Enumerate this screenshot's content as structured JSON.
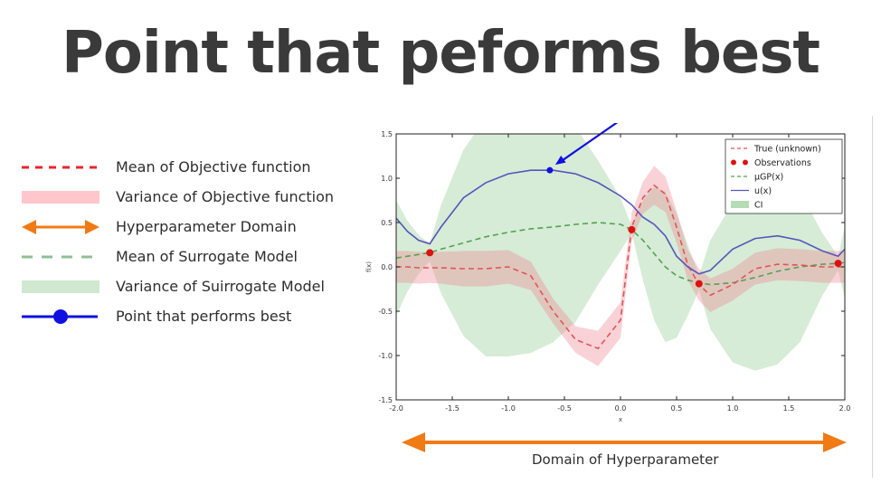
{
  "title": "Point that peforms best",
  "legend_key": [
    {
      "label": "Mean of Objective function",
      "icon": "red-dashed-line-icon",
      "color": "#e8262c"
    },
    {
      "label": "Variance of Objective function",
      "icon": "pink-band-icon",
      "color": "#ffc7cc"
    },
    {
      "label": "Hyperparameter Domain",
      "icon": "orange-double-arrow-icon",
      "color": "#f07a14"
    },
    {
      "label": "Mean of Surrogate Model",
      "icon": "green-dashed-line-icon",
      "color": "#8fbf96"
    },
    {
      "label": "Variance of Suirrogate Model",
      "icon": "green-band-icon",
      "color": "#cfe8cf"
    },
    {
      "label": "Point that performs best",
      "icon": "blue-dot-line-icon",
      "color": "#1010e0"
    }
  ],
  "domain_label": "Domain of Hyperparameter",
  "chart_data": {
    "type": "line",
    "xlim": [
      -2.0,
      2.0
    ],
    "ylim": [
      -1.5,
      1.5
    ],
    "xlabel": "x",
    "ylabel": "f(x)",
    "x_ticks": [
      "-2.0",
      "-1.5",
      "-1.0",
      "-0.5",
      "0.0",
      "0.5",
      "1.0",
      "1.5",
      "2.0"
    ],
    "y_ticks": [
      "1.5",
      "1.0",
      "0.5",
      "0.0",
      "-0.5",
      "-1.0",
      "-1.5"
    ],
    "grid": false,
    "legend_position": "top-right",
    "legend": [
      {
        "label": "True (unknown)",
        "icon": "dashed-line",
        "color": "#e05555"
      },
      {
        "label": "Observations",
        "icon": "red-dots",
        "color": "#dd1111"
      },
      {
        "label": "μGP(x)",
        "icon": "dashed-line",
        "color": "#55a055"
      },
      {
        "label": "u(x)",
        "icon": "solid-line",
        "color": "#5555bb"
      },
      {
        "label": "CI",
        "icon": "patch",
        "color": "#b5dcb5"
      }
    ],
    "x": [
      -2.0,
      -1.9,
      -1.8,
      -1.7,
      -1.6,
      -1.4,
      -1.2,
      -1.0,
      -0.8,
      -0.6,
      -0.4,
      -0.2,
      0.0,
      0.1,
      0.2,
      0.3,
      0.4,
      0.5,
      0.6,
      0.7,
      0.8,
      1.0,
      1.2,
      1.4,
      1.6,
      1.8,
      1.94,
      2.0
    ],
    "series": [
      {
        "name": "True (unknown)",
        "color": "#e05555",
        "values": [
          0.0,
          0.0,
          -0.01,
          -0.01,
          -0.01,
          -0.02,
          -0.02,
          0.0,
          -0.1,
          -0.5,
          -0.82,
          -0.92,
          -0.6,
          0.45,
          0.78,
          0.92,
          0.82,
          0.45,
          0.02,
          -0.2,
          -0.32,
          -0.2,
          -0.02,
          0.03,
          0.02,
          0.0,
          0.0,
          0.0
        ]
      },
      {
        "name": "μGP(x)",
        "color": "#55a055",
        "values": [
          0.1,
          0.12,
          0.14,
          0.16,
          0.2,
          0.27,
          0.34,
          0.39,
          0.43,
          0.45,
          0.48,
          0.5,
          0.48,
          0.42,
          0.3,
          0.15,
          0.0,
          -0.1,
          -0.15,
          -0.18,
          -0.2,
          -0.18,
          -0.12,
          -0.05,
          0.0,
          0.03,
          0.04,
          0.05
        ]
      },
      {
        "name": "u(x)",
        "color": "#5555bb",
        "values": [
          0.55,
          0.4,
          0.3,
          0.26,
          0.45,
          0.78,
          0.95,
          1.05,
          1.09,
          1.09,
          1.05,
          0.95,
          0.8,
          0.7,
          0.56,
          0.48,
          0.35,
          0.12,
          0.0,
          -0.08,
          -0.04,
          0.2,
          0.32,
          0.35,
          0.3,
          0.18,
          0.12,
          0.2
        ]
      }
    ],
    "observations": {
      "x": [
        -1.7,
        0.1,
        0.7,
        1.94
      ],
      "y": [
        0.16,
        0.42,
        -0.19,
        0.04
      ],
      "color": "#dd1111"
    },
    "best_point": {
      "x": -0.63,
      "y": 1.09,
      "color": "#1111dd"
    },
    "true_band_halfwidth": [
      0.18,
      0.18,
      0.18,
      0.17,
      0.18,
      0.2,
      0.2,
      0.19,
      0.16,
      0.14,
      0.15,
      0.2,
      0.2,
      0.16,
      0.18,
      0.22,
      0.2,
      0.18,
      0.17,
      0.18,
      0.19,
      0.18,
      0.18,
      0.18,
      0.18,
      0.18,
      0.18,
      0.18
    ],
    "ci_band_halfwidth": [
      0.65,
      0.4,
      0.22,
      0.1,
      0.5,
      1.05,
      1.35,
      1.4,
      1.4,
      1.3,
      1.1,
      0.7,
      0.3,
      0.04,
      0.45,
      0.75,
      0.85,
      0.7,
      0.4,
      0.08,
      0.5,
      0.9,
      1.05,
      1.05,
      0.85,
      0.35,
      0.08,
      0.4
    ]
  }
}
